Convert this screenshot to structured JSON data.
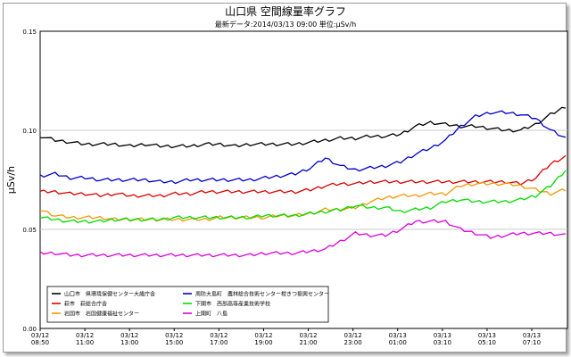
{
  "chart_data": {
    "type": "line",
    "title": "山口県 空間線量率グラフ",
    "subtitle": "最新データ:2014/03/13 09:00 単位:μSv/h",
    "ylabel": "μSv/h",
    "xlabel": "",
    "ylim": [
      0.0,
      0.15
    ],
    "y_ticks": [
      "0.00",
      "0.05",
      "0.10",
      "0.15"
    ],
    "y_tick_values": [
      0.0,
      0.05,
      0.1,
      0.15
    ],
    "x_ticks": [
      {
        "d": "03/12",
        "t": "08:50"
      },
      {
        "d": "03/12",
        "t": "11:00"
      },
      {
        "d": "03/12",
        "t": "13:00"
      },
      {
        "d": "03/12",
        "t": "15:00"
      },
      {
        "d": "03/12",
        "t": "17:00"
      },
      {
        "d": "03/12",
        "t": "19:00"
      },
      {
        "d": "03/12",
        "t": "21:00"
      },
      {
        "d": "03/12",
        "t": "23:00"
      },
      {
        "d": "03/13",
        "t": "01:00"
      },
      {
        "d": "03/13",
        "t": "03:10"
      },
      {
        "d": "03/13",
        "t": "05:10"
      },
      {
        "d": "03/13",
        "t": "07:10"
      }
    ],
    "grid": "horizontal",
    "legend_placement": "bottom",
    "series": [
      {
        "name": "山口市　県環境保健センター大歳庁舎",
        "color": "#000000",
        "values": [
          0.097,
          0.095,
          0.094,
          0.093,
          0.093,
          0.093,
          0.092,
          0.093,
          0.092,
          0.092,
          0.092,
          0.093,
          0.093,
          0.092,
          0.093,
          0.093,
          0.093,
          0.093,
          0.094,
          0.095,
          0.096,
          0.096,
          0.097,
          0.097,
          0.098,
          0.102,
          0.104,
          0.103,
          0.102,
          0.102,
          0.101,
          0.1,
          0.1,
          0.103,
          0.108,
          0.112
        ]
      },
      {
        "name": "萩市　萩総合庁舎",
        "color": "#dd0000",
        "values": [
          0.069,
          0.069,
          0.068,
          0.068,
          0.067,
          0.068,
          0.067,
          0.067,
          0.067,
          0.068,
          0.068,
          0.069,
          0.069,
          0.069,
          0.069,
          0.069,
          0.069,
          0.069,
          0.07,
          0.072,
          0.073,
          0.073,
          0.074,
          0.074,
          0.074,
          0.074,
          0.074,
          0.074,
          0.074,
          0.074,
          0.074,
          0.074,
          0.073,
          0.076,
          0.083,
          0.087
        ]
      },
      {
        "name": "岩国市　岩国健康福祉センター",
        "color": "#ee9900",
        "values": [
          0.06,
          0.057,
          0.056,
          0.056,
          0.056,
          0.055,
          0.055,
          0.055,
          0.055,
          0.055,
          0.055,
          0.055,
          0.056,
          0.056,
          0.056,
          0.056,
          0.057,
          0.057,
          0.058,
          0.06,
          0.06,
          0.061,
          0.064,
          0.066,
          0.067,
          0.067,
          0.068,
          0.068,
          0.072,
          0.073,
          0.073,
          0.073,
          0.072,
          0.07,
          0.068,
          0.07
        ]
      },
      {
        "name": "周防大島町　農林総合技術センター柑きつ振興センター",
        "color": "#0000cc",
        "values": [
          0.077,
          0.078,
          0.076,
          0.076,
          0.075,
          0.075,
          0.075,
          0.075,
          0.074,
          0.074,
          0.075,
          0.075,
          0.075,
          0.075,
          0.075,
          0.076,
          0.077,
          0.078,
          0.081,
          0.086,
          0.082,
          0.08,
          0.081,
          0.082,
          0.084,
          0.088,
          0.091,
          0.095,
          0.102,
          0.107,
          0.109,
          0.109,
          0.108,
          0.106,
          0.1,
          0.096
        ]
      },
      {
        "name": "下関市　西部高等産業技術学校",
        "color": "#00dd00",
        "values": [
          0.056,
          0.055,
          0.054,
          0.054,
          0.054,
          0.055,
          0.055,
          0.055,
          0.055,
          0.056,
          0.056,
          0.056,
          0.056,
          0.056,
          0.056,
          0.057,
          0.057,
          0.057,
          0.058,
          0.059,
          0.06,
          0.062,
          0.061,
          0.061,
          0.059,
          0.06,
          0.061,
          0.064,
          0.065,
          0.064,
          0.064,
          0.064,
          0.065,
          0.067,
          0.072,
          0.08
        ]
      },
      {
        "name": "上関町　八島",
        "color": "#dd00dd",
        "values": [
          0.038,
          0.038,
          0.037,
          0.037,
          0.037,
          0.037,
          0.037,
          0.037,
          0.037,
          0.037,
          0.037,
          0.037,
          0.037,
          0.037,
          0.037,
          0.038,
          0.038,
          0.038,
          0.039,
          0.04,
          0.044,
          0.048,
          0.047,
          0.047,
          0.05,
          0.054,
          0.054,
          0.054,
          0.05,
          0.048,
          0.046,
          0.047,
          0.048,
          0.048,
          0.048,
          0.047
        ]
      }
    ]
  }
}
